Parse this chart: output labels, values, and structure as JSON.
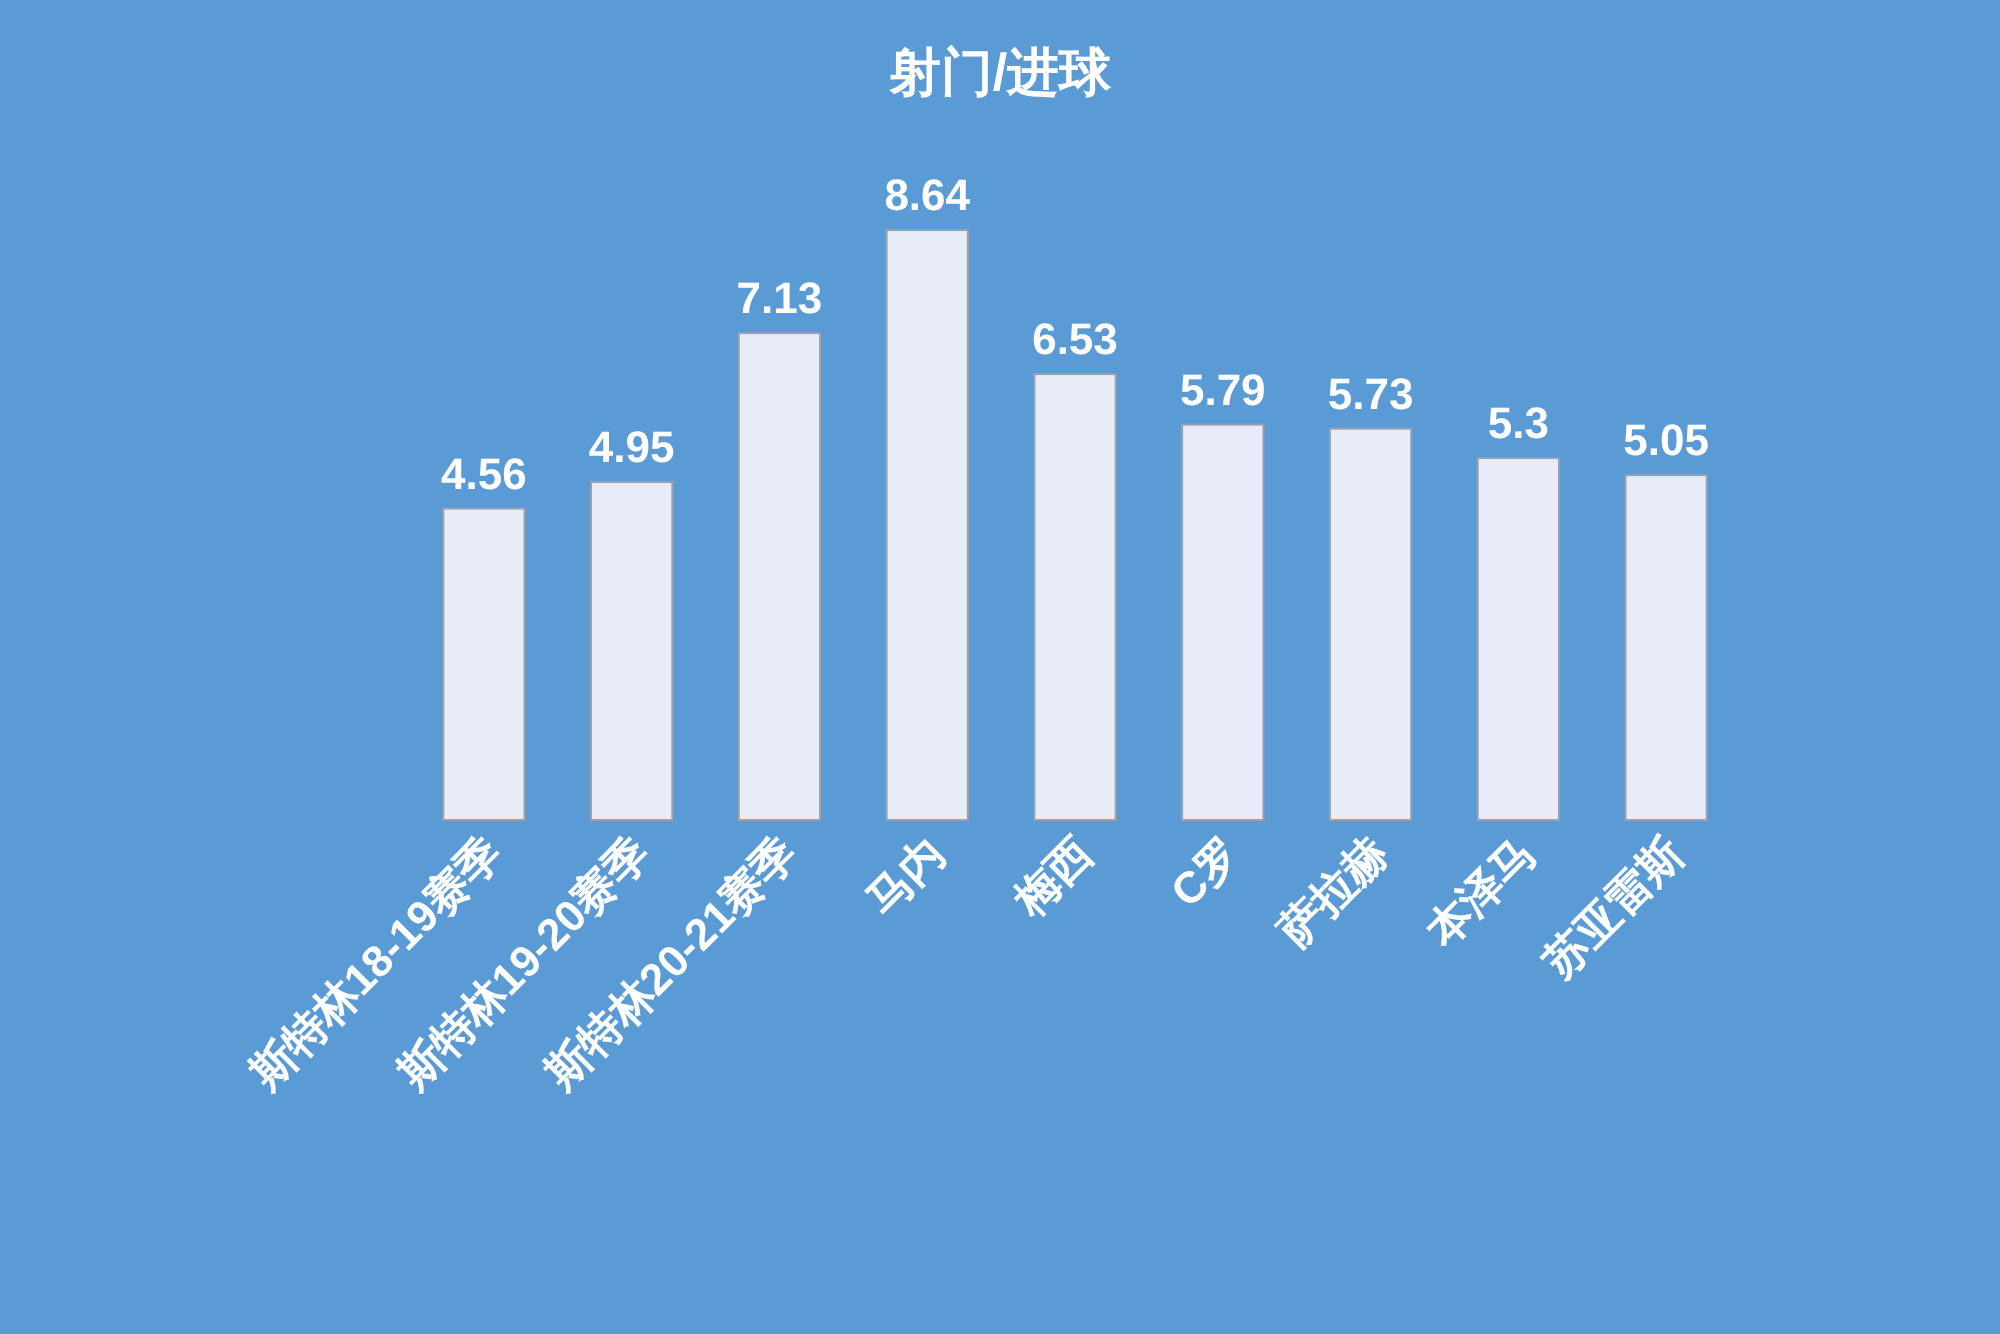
{
  "chart_data": {
    "type": "bar",
    "title": "射门/进球",
    "categories": [
      "斯特林18-19赛季",
      "斯特林19-20赛季",
      "斯特林20-21赛季",
      "马内",
      "梅西",
      "C罗",
      "萨拉赫",
      "本泽马",
      "苏亚雷斯"
    ],
    "values": [
      4.56,
      4.95,
      7.13,
      8.64,
      6.53,
      5.79,
      5.73,
      5.3,
      5.05
    ],
    "color": "#e8ebf8",
    "data_labels": true
  }
}
